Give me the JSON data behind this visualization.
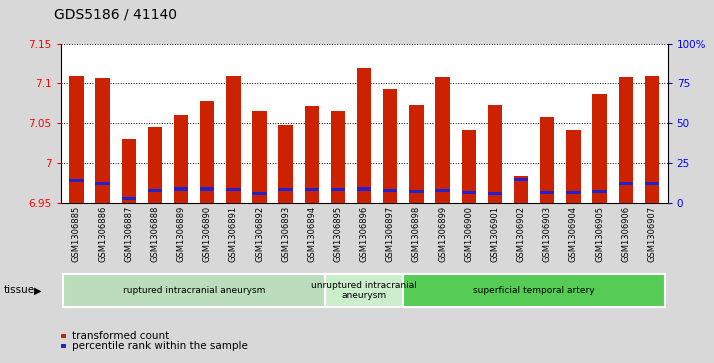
{
  "title": "GDS5186 / 41140",
  "samples": [
    "GSM1306885",
    "GSM1306886",
    "GSM1306887",
    "GSM1306888",
    "GSM1306889",
    "GSM1306890",
    "GSM1306891",
    "GSM1306892",
    "GSM1306893",
    "GSM1306894",
    "GSM1306895",
    "GSM1306896",
    "GSM1306897",
    "GSM1306898",
    "GSM1306899",
    "GSM1306900",
    "GSM1306901",
    "GSM1306902",
    "GSM1306903",
    "GSM1306904",
    "GSM1306905",
    "GSM1306906",
    "GSM1306907"
  ],
  "red_values": [
    7.11,
    7.107,
    7.03,
    7.045,
    7.06,
    7.078,
    7.11,
    7.065,
    7.048,
    7.072,
    7.065,
    7.12,
    7.093,
    7.073,
    7.108,
    7.042,
    7.073,
    6.984,
    7.058,
    7.042,
    7.087,
    7.108,
    7.11
  ],
  "blue_values": [
    6.979,
    6.975,
    6.956,
    6.966,
    6.968,
    6.968,
    6.967,
    6.962,
    6.967,
    6.967,
    6.967,
    6.968,
    6.966,
    6.965,
    6.966,
    6.963,
    6.962,
    6.98,
    6.963,
    6.963,
    6.965,
    6.975,
    6.975
  ],
  "ymin": 6.95,
  "ymax": 7.15,
  "yticks": [
    6.95,
    7.0,
    7.05,
    7.1,
    7.15
  ],
  "ytick_labels": [
    "6.95",
    "7",
    "7.05",
    "7.1",
    "7.15"
  ],
  "right_yticks": [
    0,
    25,
    50,
    75,
    100
  ],
  "right_ytick_labels": [
    "0",
    "25",
    "50",
    "75",
    "100%"
  ],
  "bar_color": "#CC2200",
  "dot_color": "#2222CC",
  "groups": [
    {
      "label": "ruptured intracranial aneurysm",
      "start": 0,
      "end": 10,
      "color": "#BBDDBB"
    },
    {
      "label": "unruptured intracranial\naneurysm",
      "start": 10,
      "end": 13,
      "color": "#CCEECC"
    },
    {
      "label": "superficial temporal artery",
      "start": 13,
      "end": 23,
      "color": "#55CC55"
    }
  ],
  "tissue_label": "tissue",
  "legend_red": "transformed count",
  "legend_blue": "percentile rank within the sample",
  "bg_color": "#D8D8D8",
  "plot_bg": "#FFFFFF",
  "bar_width": 0.55,
  "blue_bar_height": 0.004
}
